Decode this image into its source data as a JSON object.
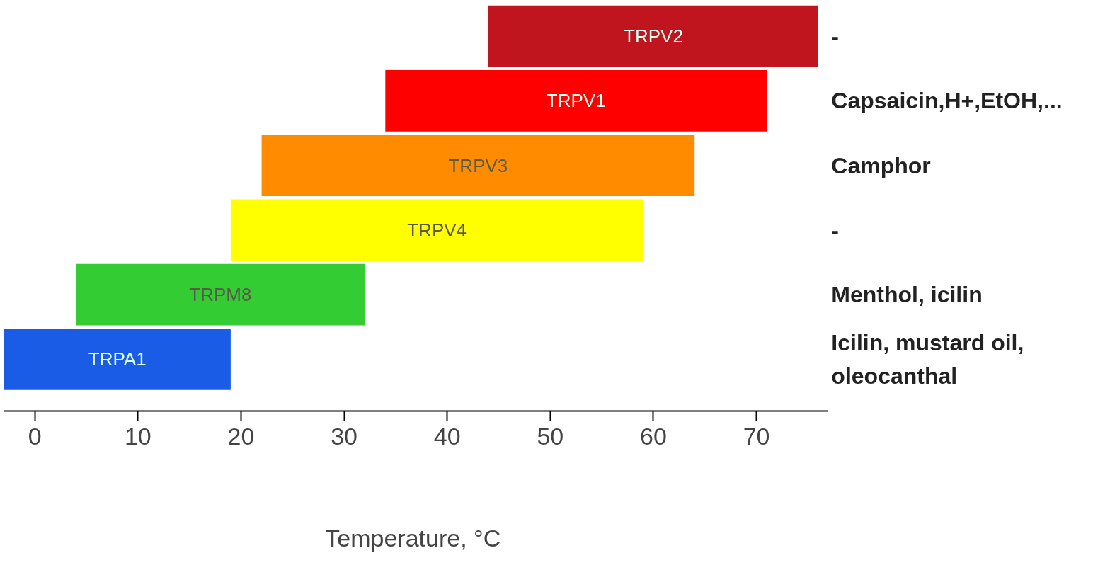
{
  "chart_data": {
    "type": "bar",
    "orientation": "horizontal",
    "xlabel": "Temperature,  °C",
    "categories": [
      "TRPV2",
      "TRPV1",
      "TRPV3",
      "TRPV4",
      "TRPM8",
      "TRPA1"
    ],
    "values": [
      32,
      37,
      42,
      40,
      28,
      22
    ],
    "base": [
      44,
      34,
      22,
      19,
      4,
      -3
    ],
    "colors": [
      "#c0141e",
      "#ff0000",
      "#ff8c00",
      "#ffff00",
      "#33cc33",
      "#1a5ce6"
    ],
    "xlim": [
      -3,
      77
    ],
    "xticks": [
      0,
      10,
      20,
      30,
      40,
      50,
      60,
      70
    ],
    "tick_labels": "x",
    "grid": false,
    "annotations": [
      "-",
      "Capsaicin,H+,EtOH,...",
      "Camphor",
      "-",
      "Menthol, icilin",
      "Icilin, mustard oil,\noleocanthal"
    ]
  }
}
